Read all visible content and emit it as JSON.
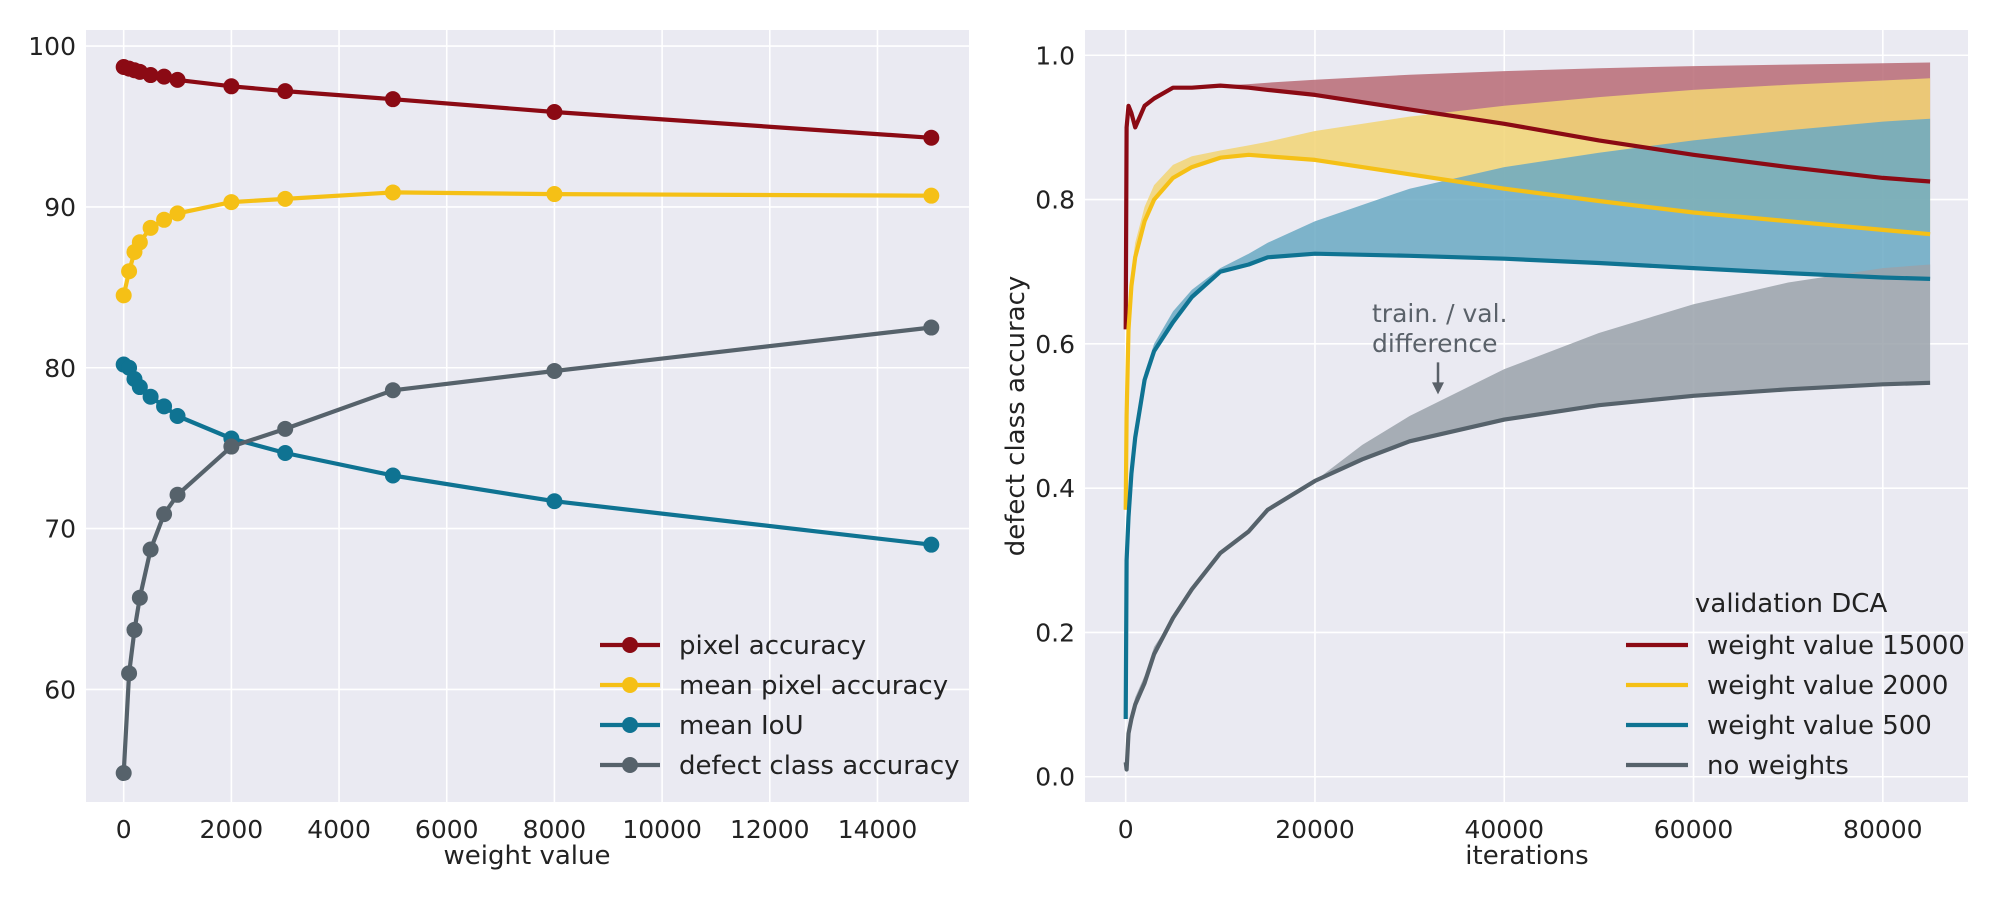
{
  "chart_data": [
    {
      "type": "line",
      "title": "",
      "xlabel": "weight value",
      "ylabel": "",
      "xlim": [
        -700,
        15700
      ],
      "ylim": [
        53,
        101
      ],
      "xticks": [
        0,
        2000,
        4000,
        6000,
        8000,
        10000,
        12000,
        14000
      ],
      "yticks": [
        60,
        70,
        80,
        90,
        100
      ],
      "grid": true,
      "legend_position": "lower-right",
      "x": [
        0,
        100,
        200,
        300,
        500,
        750,
        1000,
        2000,
        3000,
        5000,
        8000,
        15000
      ],
      "series": [
        {
          "name": "pixel accuracy",
          "color": "#8b0a14",
          "values": [
            98.7,
            98.6,
            98.5,
            98.4,
            98.2,
            98.1,
            97.9,
            97.5,
            97.2,
            96.7,
            95.9,
            94.3
          ]
        },
        {
          "name": "mean pixel accuracy",
          "color": "#f5c016",
          "values": [
            84.5,
            86.0,
            87.2,
            87.8,
            88.7,
            89.2,
            89.6,
            90.3,
            90.5,
            90.9,
            90.8,
            90.7
          ]
        },
        {
          "name": "mean IoU",
          "color": "#0f7392",
          "values": [
            80.2,
            80.0,
            79.3,
            78.8,
            78.2,
            77.6,
            77.0,
            75.6,
            74.7,
            73.3,
            71.7,
            69.0
          ]
        },
        {
          "name": "defect class accuracy",
          "color": "#56626b",
          "values": [
            54.8,
            61.0,
            63.7,
            65.7,
            68.7,
            70.9,
            72.1,
            75.1,
            76.2,
            78.6,
            79.8,
            82.5
          ]
        }
      ]
    },
    {
      "type": "line",
      "title": "",
      "xlabel": "iterations",
      "ylabel": "defect class accuracy",
      "xlim": [
        -4300,
        89000
      ],
      "ylim": [
        -0.035,
        1.035
      ],
      "xticks": [
        0,
        20000,
        40000,
        60000,
        80000
      ],
      "yticks": [
        0.0,
        0.2,
        0.4,
        0.6,
        0.8,
        1.0
      ],
      "grid": true,
      "legend_title": "validation DCA",
      "legend_position": "lower-right",
      "annotation": {
        "lines": [
          "train. / val.",
          "difference"
        ],
        "points_to": [
          33000,
          0.53
        ]
      },
      "series": [
        {
          "name": "weight value 15000",
          "color": "#8b0a14",
          "band_color": "#b86b76",
          "x": [
            0,
            100,
            300,
            600,
            1000,
            2000,
            3000,
            5000,
            7000,
            10000,
            13000,
            15000,
            20000,
            30000,
            40000,
            50000,
            60000,
            70000,
            80000,
            85000
          ],
          "values": [
            0.62,
            0.9,
            0.93,
            0.92,
            0.9,
            0.93,
            0.94,
            0.955,
            0.955,
            0.958,
            0.955,
            0.952,
            0.945,
            0.925,
            0.905,
            0.882,
            0.862,
            0.845,
            0.83,
            0.825
          ],
          "train": [
            0.62,
            0.9,
            0.93,
            0.92,
            0.9,
            0.93,
            0.94,
            0.955,
            0.955,
            0.958,
            0.96,
            0.962,
            0.966,
            0.973,
            0.978,
            0.982,
            0.985,
            0.987,
            0.989,
            0.99
          ]
        },
        {
          "name": "weight value 2000",
          "color": "#f5c016",
          "band_color": "#f2d574",
          "x": [
            0,
            100,
            300,
            600,
            1000,
            2000,
            3000,
            5000,
            7000,
            10000,
            13000,
            15000,
            20000,
            30000,
            40000,
            50000,
            60000,
            70000,
            80000,
            85000
          ],
          "values": [
            0.37,
            0.5,
            0.62,
            0.68,
            0.72,
            0.77,
            0.8,
            0.83,
            0.845,
            0.858,
            0.862,
            0.86,
            0.855,
            0.835,
            0.815,
            0.798,
            0.782,
            0.77,
            0.758,
            0.752
          ],
          "train": [
            0.37,
            0.52,
            0.64,
            0.7,
            0.74,
            0.79,
            0.82,
            0.848,
            0.86,
            0.868,
            0.875,
            0.88,
            0.895,
            0.915,
            0.93,
            0.942,
            0.952,
            0.959,
            0.965,
            0.968
          ]
        },
        {
          "name": "weight value 500",
          "color": "#0f7392",
          "band_color": "#6aa9c3",
          "x": [
            0,
            100,
            300,
            600,
            1000,
            2000,
            3000,
            5000,
            7000,
            10000,
            13000,
            15000,
            20000,
            30000,
            40000,
            50000,
            60000,
            70000,
            80000,
            85000
          ],
          "values": [
            0.08,
            0.3,
            0.36,
            0.42,
            0.47,
            0.55,
            0.59,
            0.63,
            0.665,
            0.7,
            0.71,
            0.72,
            0.725,
            0.722,
            0.718,
            0.712,
            0.705,
            0.698,
            0.692,
            0.69
          ],
          "train": [
            0.08,
            0.31,
            0.37,
            0.43,
            0.48,
            0.56,
            0.6,
            0.645,
            0.675,
            0.705,
            0.725,
            0.74,
            0.77,
            0.815,
            0.845,
            0.865,
            0.882,
            0.896,
            0.908,
            0.912
          ]
        },
        {
          "name": "no weights",
          "color": "#56626b",
          "band_color": "#9aa2aa",
          "x": [
            0,
            100,
            300,
            600,
            1000,
            2000,
            3000,
            5000,
            7000,
            10000,
            13000,
            15000,
            20000,
            25000,
            30000,
            40000,
            50000,
            60000,
            70000,
            80000,
            85000
          ],
          "values": [
            0.02,
            0.01,
            0.06,
            0.08,
            0.1,
            0.13,
            0.17,
            0.22,
            0.26,
            0.31,
            0.34,
            0.37,
            0.41,
            0.44,
            0.465,
            0.495,
            0.515,
            0.528,
            0.537,
            0.544,
            0.546
          ],
          "train": [
            0.02,
            0.02,
            0.07,
            0.09,
            0.11,
            0.14,
            0.18,
            0.22,
            0.26,
            0.31,
            0.34,
            0.37,
            0.41,
            0.46,
            0.5,
            0.565,
            0.615,
            0.655,
            0.685,
            0.705,
            0.71
          ]
        }
      ]
    }
  ]
}
